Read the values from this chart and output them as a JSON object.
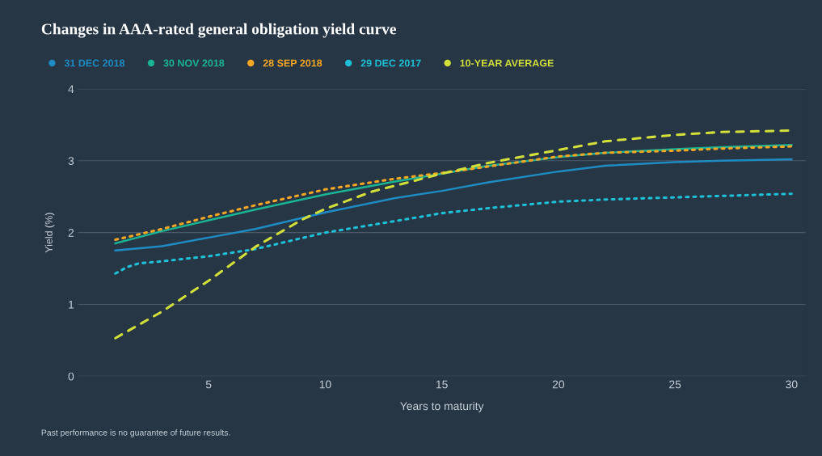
{
  "chart_data": {
    "type": "line",
    "title": "Changes in AAA-rated general obligation yield curve",
    "xlabel": "Years to maturity",
    "ylabel": "Yield (%)",
    "xlim": [
      -0.6,
      30.6
    ],
    "xticks": [
      5,
      10,
      15,
      20,
      25,
      30
    ],
    "ylim": [
      0,
      4
    ],
    "yticks": [
      0,
      1,
      2,
      3,
      4
    ],
    "grid": "y",
    "legend": "top left",
    "marker": "none",
    "annotations": [
      "Past performance is no guarantee of future results."
    ],
    "series": [
      {
        "name": "31 DEC 2018",
        "color": "#1e8bc3",
        "line_style": "solid",
        "x": [
          1,
          3,
          5,
          7,
          10,
          13,
          15,
          17,
          20,
          22,
          25,
          27,
          30
        ],
        "values": [
          1.75,
          1.81,
          1.93,
          2.05,
          2.28,
          2.48,
          2.58,
          2.7,
          2.85,
          2.93,
          2.98,
          3.0,
          3.02
        ]
      },
      {
        "name": "30 NOV 2018",
        "color": "#1ab394",
        "line_style": "solid",
        "x": [
          1,
          3,
          5,
          7,
          10,
          13,
          15,
          17,
          20,
          22,
          25,
          27,
          30
        ],
        "values": [
          1.85,
          2.02,
          2.17,
          2.32,
          2.53,
          2.71,
          2.82,
          2.93,
          3.05,
          3.11,
          3.16,
          3.19,
          3.22
        ]
      },
      {
        "name": "28 SEP 2018",
        "color": "#f5a623",
        "line_style": "dotted",
        "x": [
          1,
          3,
          5,
          7,
          10,
          13,
          15,
          17,
          20,
          22,
          25,
          27,
          30
        ],
        "values": [
          1.9,
          2.05,
          2.22,
          2.38,
          2.6,
          2.75,
          2.83,
          2.92,
          3.06,
          3.11,
          3.14,
          3.17,
          3.2
        ]
      },
      {
        "name": "29 DEC 2017",
        "color": "#1ec0d8",
        "line_style": "dotted",
        "x": [
          1,
          1.5,
          2,
          3,
          5,
          7,
          10,
          13,
          15,
          17,
          20,
          22,
          25,
          27,
          30
        ],
        "values": [
          1.43,
          1.52,
          1.57,
          1.6,
          1.67,
          1.77,
          2.0,
          2.16,
          2.27,
          2.34,
          2.43,
          2.46,
          2.49,
          2.51,
          2.54
        ]
      },
      {
        "name": "10-YEAR AVERAGE",
        "color": "#d4e03a",
        "line_style": "dashed",
        "x": [
          1,
          3,
          5,
          7,
          9,
          10,
          12,
          15,
          17,
          20,
          22,
          25,
          27,
          30
        ],
        "values": [
          0.53,
          0.9,
          1.33,
          1.8,
          2.18,
          2.33,
          2.57,
          2.82,
          2.97,
          3.15,
          3.27,
          3.36,
          3.4,
          3.42
        ]
      }
    ]
  }
}
